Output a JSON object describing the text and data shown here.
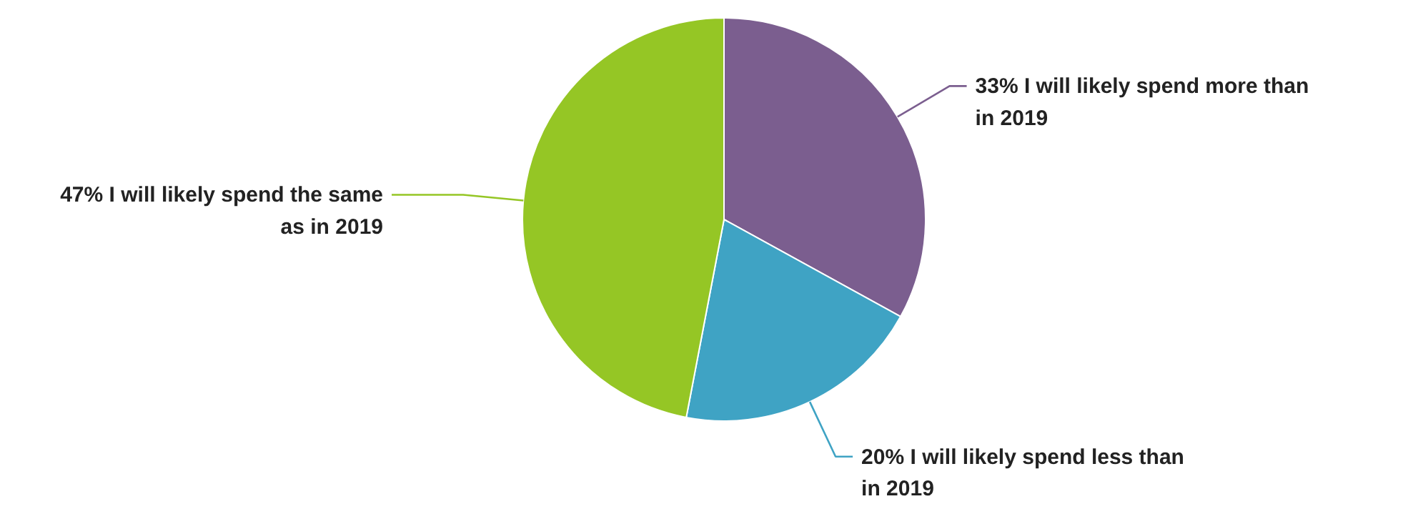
{
  "chart_data": {
    "type": "pie",
    "categories": [
      "I will likely spend more than in 2019",
      "I will likely spend less than in 2019",
      "I will likely spend the same as in 2019"
    ],
    "values": [
      33,
      20,
      47
    ],
    "value_labels": [
      "33%",
      "20%",
      "47%"
    ],
    "colors": [
      "#7b5e8f",
      "#3fa3c4",
      "#95c625"
    ],
    "legend": false
  }
}
